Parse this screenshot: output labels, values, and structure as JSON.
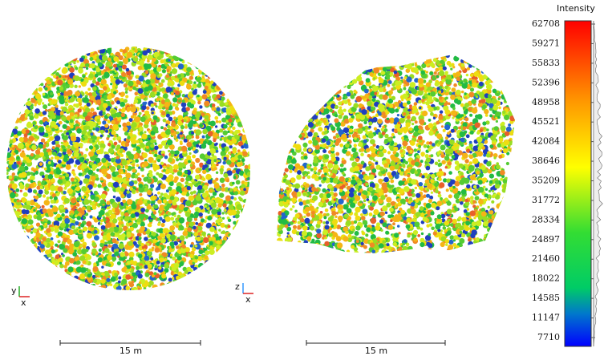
{
  "views": [
    {
      "axes": {
        "up": "y",
        "right": "x"
      },
      "scale_bar": "15 m"
    },
    {
      "axes": {
        "up": "z",
        "right": "x"
      },
      "scale_bar": "15 m"
    }
  ],
  "color_scale": {
    "title": "Intensity",
    "ticks": [
      62708,
      59271,
      55833,
      52396,
      48958,
      45521,
      42084,
      38646,
      35209,
      31772,
      28334,
      24897,
      21460,
      18022,
      14585,
      11147,
      7710
    ]
  }
}
